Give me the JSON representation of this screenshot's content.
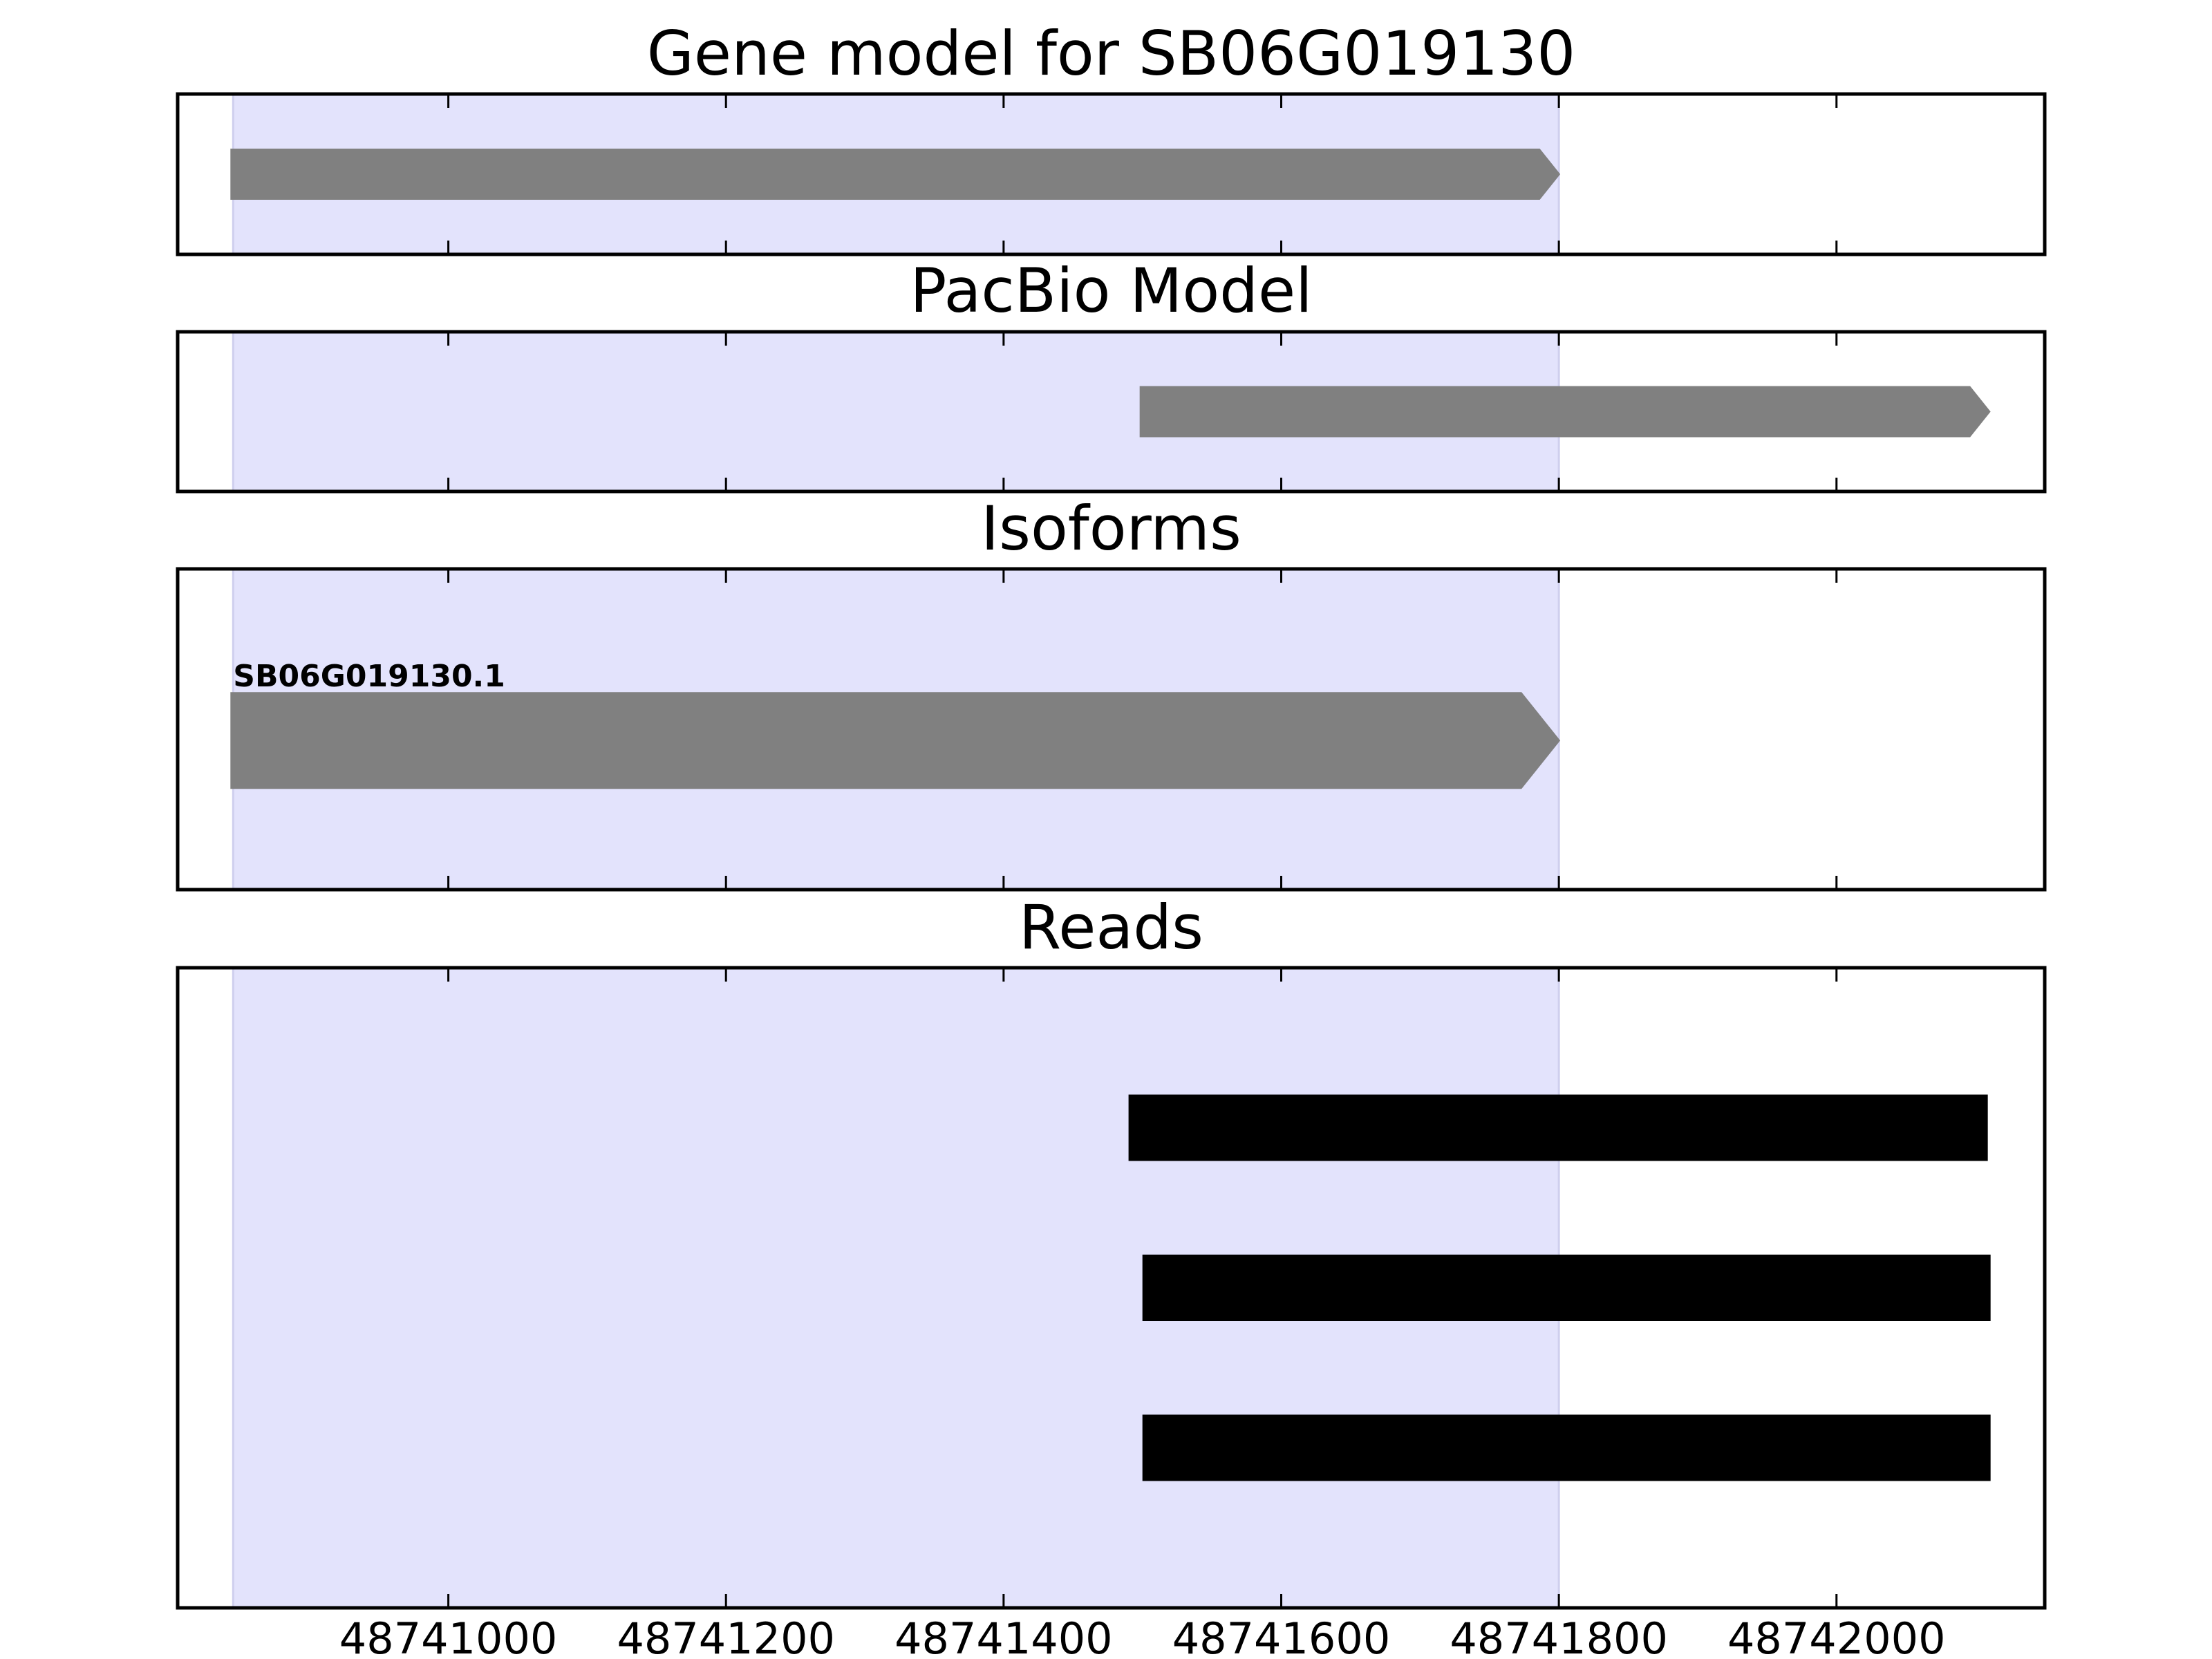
{
  "chart_data": {
    "type": "gene-track",
    "x_axis": {
      "xlim": [
        48740805,
        48742150
      ],
      "ticks": [
        48741000,
        48741200,
        48741400,
        48741600,
        48741800,
        48742000
      ],
      "tick_labels": [
        "48741000",
        "48741200",
        "48741400",
        "48741600",
        "48741800",
        "48742000"
      ]
    },
    "highlight_region": {
      "start": 48740845,
      "end": 48741800,
      "color": "#e3e3fc"
    },
    "panels": [
      {
        "id": "gene-model",
        "title": "Gene model for SB06G019130",
        "features": [
          {
            "start": 48740843,
            "end": 48741801,
            "strand": "+",
            "color": "#808080"
          }
        ]
      },
      {
        "id": "pacbio-model",
        "title": "PacBio Model",
        "features": [
          {
            "start": 48741498,
            "end": 48742111,
            "strand": "+",
            "color": "#808080"
          }
        ]
      },
      {
        "id": "isoforms",
        "title": "Isoforms",
        "features": [
          {
            "name": "SB06G019130.1",
            "start": 48740843,
            "end": 48741801,
            "strand": "+",
            "color": "#808080"
          }
        ]
      },
      {
        "id": "reads",
        "title": "Reads",
        "features": [
          {
            "start": 48741490,
            "end": 48742109,
            "color": "#000000"
          },
          {
            "start": 48741500,
            "end": 48742111,
            "color": "#000000"
          },
          {
            "start": 48741500,
            "end": 48742111,
            "color": "#000000"
          }
        ]
      }
    ]
  }
}
